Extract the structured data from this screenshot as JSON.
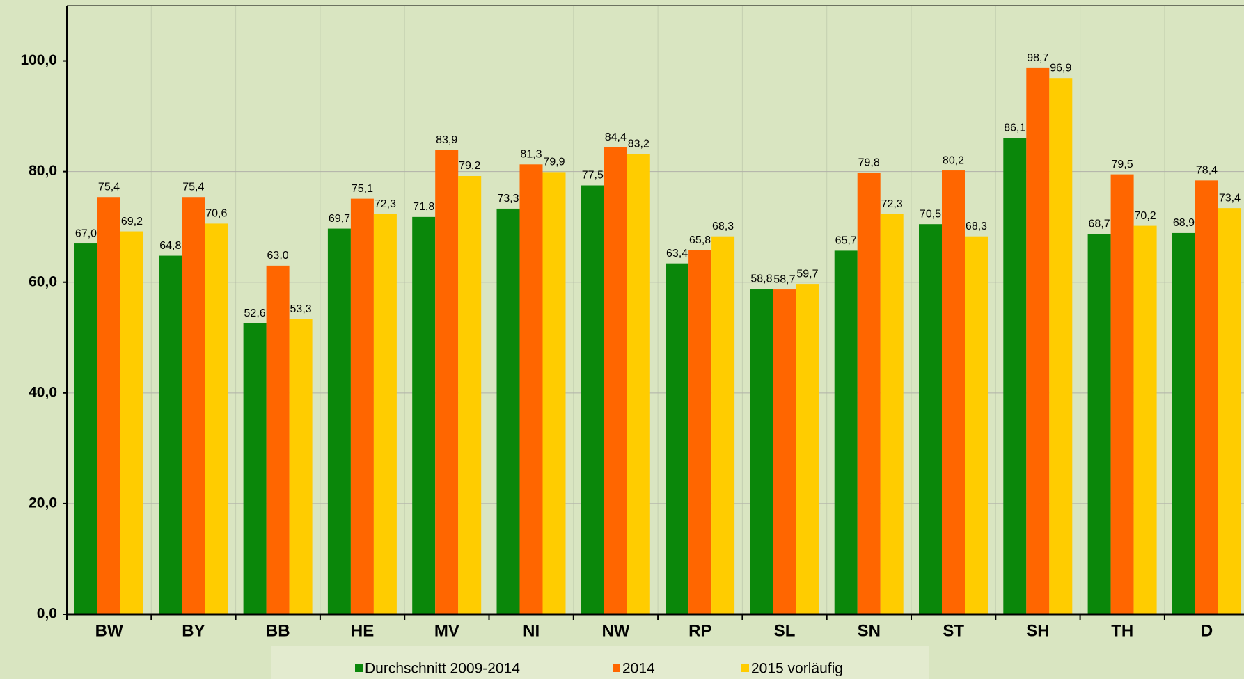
{
  "chart_data": {
    "type": "bar",
    "categories": [
      "BW",
      "BY",
      "BB",
      "HE",
      "MV",
      "NI",
      "NW",
      "RP",
      "SL",
      "SN",
      "ST",
      "SH",
      "TH",
      "D"
    ],
    "series": [
      {
        "name": "Durchschnitt 2009-2014",
        "color": "#0a870a",
        "values": [
          67.0,
          64.8,
          52.6,
          69.7,
          71.8,
          73.3,
          77.5,
          63.4,
          58.8,
          65.7,
          70.5,
          86.1,
          68.7,
          68.9
        ],
        "value_labels": [
          "67,0",
          "64,8",
          "52,6",
          "69,7",
          "71,8",
          "73,3",
          "77,5",
          "63,4",
          "58,8",
          "65,7",
          "70,5",
          "86,1",
          "68,7",
          "68,9"
        ]
      },
      {
        "name": "2014",
        "color": "#ff6600",
        "values": [
          75.4,
          75.4,
          63.0,
          75.1,
          83.9,
          81.3,
          84.4,
          65.8,
          58.7,
          79.8,
          80.2,
          98.7,
          79.5,
          78.4
        ],
        "value_labels": [
          "75,4",
          "75,4",
          "63,0",
          "75,1",
          "83,9",
          "81,3",
          "84,4",
          "65,8",
          "58,7",
          "79,8",
          "80,2",
          "98,7",
          "79,5",
          "78,4"
        ]
      },
      {
        "name": "2015 vorläufig",
        "color": "#ffcc00",
        "values": [
          69.2,
          70.6,
          53.3,
          72.3,
          79.2,
          79.9,
          83.2,
          68.3,
          59.7,
          72.3,
          68.3,
          96.9,
          70.2,
          73.4
        ],
        "value_labels": [
          "69,2",
          "70,6",
          "53,3",
          "72,3",
          "79,2",
          "79,9",
          "83,2",
          "68,3",
          "59,7",
          "72,3",
          "68,3",
          "96,9",
          "70,2",
          "73,4"
        ]
      }
    ],
    "ylim": [
      0,
      110
    ],
    "yticks": [
      {
        "value": 0,
        "label": "0,0"
      },
      {
        "value": 20,
        "label": "20,0"
      },
      {
        "value": 40,
        "label": "40,0"
      },
      {
        "value": 60,
        "label": "60,0"
      },
      {
        "value": 80,
        "label": "80,0"
      },
      {
        "value": 100,
        "label": "100,0"
      }
    ],
    "grid": true,
    "legend": "bottom"
  }
}
